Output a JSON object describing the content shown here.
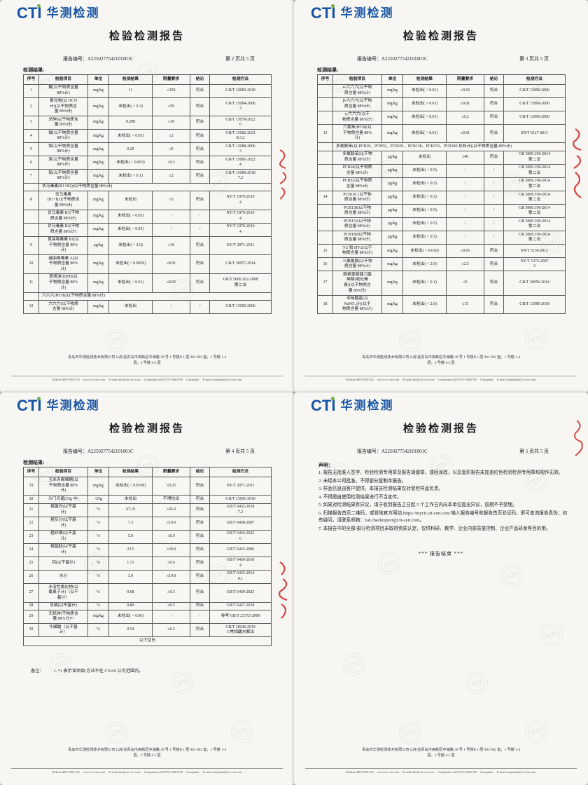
{
  "report": {
    "brand": {
      "logo_text": "CTI",
      "brand_name": "华测检测"
    },
    "title": "检验检测报告",
    "report_no_label": "报告编号：",
    "report_no": "A2250277542101001C",
    "results_label": "检测结果:",
    "table_headers": [
      "序号",
      "检验项目",
      "单位",
      "检测结果",
      "限量要求",
      "结论",
      "检测方法"
    ],
    "footer": {
      "address_line1": "青岛市华测检测技术有限公司 山东省青岛市高新区中海路 39 号 1 号楼B 1 层 901-902 室，1 号楼 1-4",
      "address_line2": "层，3 号楼 4-5 层",
      "contacts": "Hotline:400-6788-333   www.cti-cert.com   E-mail:info@cti-cert.com   Complaint:call:0755-33681700   Complaint E-mail:complaint@cti-cert.com"
    }
  },
  "pages": [
    {
      "page_label": "第 2 页共 5 页",
      "rows": [
        {
          "no": "1",
          "item": "氟(以干物质含量\n88%计)",
          "unit": "mg/kg",
          "result": "11",
          "limit": "≤150",
          "verdict": "符合",
          "method": "GB/T 13083-2018"
        },
        {
          "no": "2",
          "item": "氰化物(以 HCN\n计)(以干物质含\n量 88%计)",
          "unit": "mg/kg",
          "result": "未检出( < 0.3)",
          "limit": "≤50",
          "verdict": "符合",
          "method": "GB/T 13084-2006\n3"
        },
        {
          "no": "3",
          "item": "总砷(以干物质含\n量 88%计)",
          "unit": "mg/kg",
          "result": "0.208",
          "limit": "≤10",
          "verdict": "符合",
          "method": "GB/T 13079-2022\n6"
        },
        {
          "no": "4",
          "item": "镉(以干物质含量\n88%计)",
          "unit": "mg/kg",
          "result": "未检出( < 0.05)",
          "limit": "≤2",
          "verdict": "符合",
          "method": "GB/T 13082-2021\n8.3.2"
        },
        {
          "no": "5",
          "item": "铬(以干物质含量\n88%计)",
          "unit": "mg/kg",
          "result": "0.29",
          "limit": "≤5",
          "verdict": "符合",
          "method": "GB/T 13088-2006\n3"
        },
        {
          "no": "6",
          "item": "汞(以干物质含量\n88%计)",
          "unit": "mg/kg",
          "result": "未检出( < 0.003)",
          "limit": "≤0.3",
          "verdict": "符合",
          "method": "GB/T 13081-2022\n4"
        },
        {
          "no": "7",
          "item": "铅(以干物质含量\n88%计)",
          "unit": "mg/kg",
          "result": "未检出( < 0.1)",
          "limit": "≤2",
          "verdict": "符合",
          "method": "GB/T 13080-2018\n7.2"
        },
        {
          "group": "伏马毒素(B1+B2)(以干物质含量 88%计)"
        },
        {
          "no": "8",
          "item": "伏马毒素\n(B1+B2)(干物质含\n量 88%计)",
          "unit": "mg/kg",
          "result": "未检出",
          "limit": "≤5",
          "verdict": "符合",
          "method": "NY/T 1970-2010\n4"
        },
        {
          "no": "",
          "item": "伏马毒素 B1(干物\n质含量 88%计)",
          "unit": "mg/kg",
          "result": "未检出( < 0.05)",
          "limit": "/",
          "verdict": "/",
          "method": "NY/T 1970-2010\n4"
        },
        {
          "no": "",
          "item": "伏马毒素 B2(干物\n质含量 88%计)",
          "unit": "mg/kg",
          "result": "未检出( < 0.05)",
          "limit": "/",
          "verdict": "/",
          "method": "NY/T 1970-2010\n4"
        },
        {
          "no": "9",
          "item": "黄曲霉毒素 B1(以\n干物质含量 88%\n计)",
          "unit": "μg/kg",
          "result": "未检出( < 2.0)",
          "limit": "≤10",
          "verdict": "符合",
          "method": "NY/T 2071-2011"
        },
        {
          "no": "10",
          "item": "赭曲霉毒素 A(以\n干物质含量 88%\n计)",
          "unit": "mg/kg",
          "result": "未检出( < 0.0050)",
          "limit": "≤0.01",
          "verdict": "符合",
          "method": "GB/T 30957-2014"
        },
        {
          "no": "11",
          "item": "滴滴涕(DDT)(以\n干物质含量 88%\n计)",
          "unit": "mg/kg",
          "result": "未检出( < 0.01)",
          "limit": "≤0.05",
          "verdict": "符合",
          "method": "GB/T 5009.162-2008\n第二法"
        },
        {
          "group": "六六六(HCH)(以干物质含量 88%计)"
        },
        {
          "no": "12",
          "item": "六六六(以干物质\n含量 88%计)",
          "unit": "mg/kg",
          "result": "未检出",
          "limit": "/",
          "verdict": "/",
          "method": "GB/T 13090-2006"
        }
      ]
    },
    {
      "page_label": "第 3 页共 5 页",
      "rows": [
        {
          "no": "",
          "item": "α-六六六(以干物\n质含量 88%计)",
          "unit": "mg/kg",
          "result": "未检出( < 0.01)",
          "limit": "≤0.02",
          "verdict": "符合",
          "method": "GB/T 13090-2006"
        },
        {
          "no": "",
          "item": "β-六六六(以干物\n质含量 88%计)",
          "unit": "mg/kg",
          "result": "未检出( < 0.01)",
          "limit": "≤0.01",
          "verdict": "符合",
          "method": "GB/T 13090-2006"
        },
        {
          "no": "",
          "item": "γ-六六六(以干\n物质含量 88%计)",
          "unit": "mg/kg",
          "result": "未检出( < 0.01)",
          "limit": "≤0.2",
          "verdict": "符合",
          "method": "GB/T 13090-2006"
        },
        {
          "no": "13",
          "item": "六氯苯(HCB)(以\n干物质含量 88%\n计)",
          "unit": "mg/kg",
          "result": "未检出( < 0.01)",
          "limit": "≤0.01",
          "verdict": "符合",
          "method": "SN/T 0127-2011"
        },
        {
          "group": "多氯联苯(以 PCB28、PCB52、PCB101、PCB138、PCB153、PCB180 总和计)(以干物质含量 88%计)"
        },
        {
          "no": "",
          "item": "多氯联苯(以干物\n质含量 88%计)",
          "unit": "μg/kg",
          "result": "未检出",
          "limit": "≤40",
          "verdict": "符合",
          "method": "GB 5009.190-2014\n第二法"
        },
        {
          "no": "",
          "item": "PCB28(以干物质\n含量 88%计)",
          "unit": "μg/kg",
          "result": "未检出( < 0.5)",
          "limit": "/",
          "verdict": "/",
          "method": "GB 5009.190-2014\n第二法"
        },
        {
          "no": "",
          "item": "PCB52(以干物质\n含量 88%计)",
          "unit": "μg/kg",
          "result": "未检出( < 0.5)",
          "limit": "/",
          "verdict": "/",
          "method": "GB 5009.190-2014\n第二法"
        },
        {
          "no": "14",
          "item": "PCB101 (以干物\n质含量 88%计)",
          "unit": "μg/kg",
          "result": "未检出( < 0.5)",
          "limit": "/",
          "verdict": "/",
          "method": "GB 5009.190-2014\n第二法"
        },
        {
          "no": "",
          "item": "PCB138(以干物\n质含量 88%计)",
          "unit": "μg/kg",
          "result": "未检出( < 0.5)",
          "limit": "/",
          "verdict": "/",
          "method": "GB 5009.190-2014\n第二法"
        },
        {
          "no": "",
          "item": "PCB153(以干物\n质含量 88%计)",
          "unit": "μg/kg",
          "result": "未检出( < 0.5)",
          "limit": "/",
          "verdict": "/",
          "method": "GB 5009.190-2014\n第二法"
        },
        {
          "no": "",
          "item": "PCB180(以干物\n质含量 88%计)",
          "unit": "μg/kg",
          "result": "未检出( < 0.5)",
          "limit": "/",
          "verdict": "/",
          "method": "GB 5009.190-2014\n第二法"
        },
        {
          "no": "15",
          "item": "T-2 和 HT-2(以干\n物质含量 88%计)",
          "unit": "mg/kg",
          "result": "未检出( < 0.010)",
          "limit": "≤0.05",
          "verdict": "符合",
          "method": "SN/T 3136-2012"
        },
        {
          "no": "16",
          "item": "三聚氰胺(以干物\n质含量 88%计)",
          "unit": "mg/kg",
          "result": "未检出( < 2.0)",
          "limit": "≤2.5",
          "verdict": "符合",
          "method": "NY/T 1372-2007\n3"
        },
        {
          "no": "17",
          "item": "脱氧雪腐镰刀菌\n烯醇(呕吐毒\n素)(以干物质含\n量 88%计)",
          "unit": "mg/kg",
          "result": "未检出( < 0.1)",
          "limit": "≤5",
          "verdict": "符合",
          "method": "GB/T 30956-2014"
        },
        {
          "no": "18",
          "item": "亚硝酸盐(以\nNaNO₂计)(以干\n物质含量 88%计)",
          "unit": "mg/kg",
          "result": "未检出( < 2.0)",
          "limit": "≤15",
          "verdict": "符合",
          "method": "GB/T 13085-2018"
        }
      ]
    },
    {
      "page_label": "第 4 页共 5 页",
      "rows": [
        {
          "no": "19",
          "item": "玉米赤霉烯酮(以\n干物质含量 88%\n计)",
          "unit": "mg/kg",
          "result": "未检出( < 0.0100)",
          "limit": "≤0.25",
          "verdict": "符合",
          "method": "NY/T 2071-2011"
        },
        {
          "no": "20",
          "item": "沙门氏菌(25g 中)",
          "unit": "/25g",
          "result": "未检出",
          "limit": "不得检出",
          "verdict": "符合",
          "method": "GB/T 13091-2018"
        },
        {
          "no": "21",
          "item": "粗蛋白(以干基\n计)",
          "unit": "%",
          "result": "47.19",
          "limit": "≥45.0",
          "verdict": "符合",
          "method": "GB/T 6432-2018\n7.2"
        },
        {
          "no": "22",
          "item": "粗灰分(以干基\n计)",
          "unit": "%",
          "result": "7.3",
          "limit": "≤10.0",
          "verdict": "符合",
          "method": "GB/T 6438-2007"
        },
        {
          "no": "23",
          "item": "粗纤维(以干基\n计)",
          "unit": "%",
          "result": "5.0",
          "limit": "≤6.0",
          "verdict": "符合",
          "method": "GB/T 6434-2022\n6"
        },
        {
          "no": "24",
          "item": "粗脂肪(以干基\n计)",
          "unit": "%",
          "result": "23.5",
          "limit": "≥20.0",
          "verdict": "符合",
          "method": "GB/T 6433-2006"
        },
        {
          "no": "25",
          "item": "钙(以干基计)",
          "unit": "%",
          "result": "1.33",
          "limit": "≥0.6",
          "verdict": "符合",
          "method": "GB/T 6436-2018\n4"
        },
        {
          "no": "26",
          "item": "水分",
          "unit": "%",
          "result": "3.9",
          "limit": "≤10.0",
          "verdict": "符合",
          "method": "GB/T 6435-2014\n8.1"
        },
        {
          "no": "27",
          "item": "水溶性氯化物(以\n氯离子计)（以干\n基计）",
          "unit": "%",
          "result": "0.68",
          "limit": "≥0.3",
          "verdict": "符合",
          "method": "GB/T 6439-2023"
        },
        {
          "no": "28",
          "item": "总磷(以干基计)",
          "unit": "%",
          "result": "0.89",
          "limit": "≥0.5",
          "verdict": "符合",
          "method": "GB/T 6437-2018"
        },
        {
          "no": "29",
          "item": "无机砷(干物质含\n量 88%计)*¹",
          "unit": "mg/kg",
          "result": "未检出( < 0.06)",
          "limit": "/",
          "verdict": "/",
          "method": "参考 GB/T 23372-2009"
        },
        {
          "no": "30",
          "item": "牛磺酸（以干基\n计）",
          "unit": "%",
          "result": "0.54",
          "limit": "≥0.2",
          "verdict": "符合",
          "method": "GB/T 18246-2019\n3 常规酸水解法"
        },
        {
          "note": "以下空白"
        }
      ],
      "remark_label": "备注：",
      "remark": "1. *1 表示该项目/方法不在 CNAS 认可范围内。"
    },
    {
      "page_label": "第 5 页共 5 页",
      "statement_title": "声明：",
      "statements": [
        "1. 报告无批准人签字、检验检测专用章及报告骑缝章，或经涂改，以及复印报告未加盖红色检验检测专用章均视作无效。",
        "2. 未经本公司批准，不得部分复制本报告。",
        "3. 样品信息由客户提供，本报告检测结果仅对受检样品负责。",
        "4. 不得擅自使用检测结果进行不当宣传。",
        "5. 如果对检测结果有异议，请于收到报告之日起 5 个工作日内向本单位提出异议，逾期不予受理。",
        "6. 扫描报告首页二维码，或登陆官方网站 https://mycti.cti-cert.com 输入报告编号和报告首页验证码，即可查询报告真伪；如有疑问，请联系邮箱：fsd.checkreport@cti-cert.com。",
        "7. 本报告中的全部/部分检测项目未取得资质认定，仅供科研、教学、企业内部质量控制、企业产品研发等目的用。"
      ],
      "end_note": "*** 报告结束 ***"
    }
  ]
}
